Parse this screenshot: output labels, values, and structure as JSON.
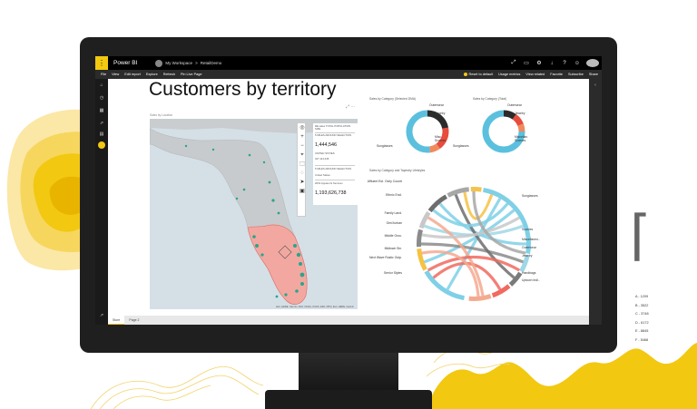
{
  "app": {
    "name": "Power BI",
    "breadcrumb_workspace": "My Workspace",
    "breadcrumb_sep": ">",
    "breadcrumb_report": "RetailDemo"
  },
  "topbar_icons": [
    "expand-icon",
    "notifications-icon",
    "settings-icon",
    "download-icon",
    "help-icon",
    "feedback-icon"
  ],
  "cmdbar": {
    "left": [
      "File",
      "View",
      "Edit report",
      "Explore",
      "Refresh",
      "Pin Live Page"
    ],
    "right": [
      "Reset to default",
      "Usage metrics",
      "View related",
      "Favorite",
      "Subscribe",
      "Share"
    ]
  },
  "report": {
    "title": "Customers by territory",
    "map_caption": "Sales by Location"
  },
  "stats": [
    {
      "label": "RE sales TOTAL POPULATION SIZE",
      "value": ""
    },
    {
      "label": "5 MILES AROUND SELECTION",
      "value": "1,444,546"
    },
    {
      "label": "UNITED STATES",
      "value": "327,114,236"
    },
    {
      "label": "5 MILES AROUND SELECTION",
      "value": "United States"
    },
    {
      "label": "2019 Apparel & Services",
      "value": "1,193,626,738"
    }
  ],
  "map_credit": "Esri, HERE, Garmin, FAO, NOAA, USGS, EPA, NPS | Esri, HERE, Garmin",
  "donut1": {
    "title": "Sales by Category (Selected DMA)",
    "labels": [
      "Outerwear",
      "Jewelry",
      "Sunglasses",
      "Misc. Scarves"
    ],
    "slices": [
      {
        "name": "Outerwear",
        "value": 22,
        "color": "#2b2b2b"
      },
      {
        "name": "Jewelry",
        "value": 18,
        "color": "#e74c3c"
      },
      {
        "name": "Misc",
        "value": 8,
        "color": "#f08a5d"
      },
      {
        "name": "Sunglasses",
        "value": 52,
        "color": "#5bc0de"
      }
    ]
  },
  "donut2": {
    "title": "Sales by Category (Total)",
    "labels": [
      "Outerwear",
      "Jewelry",
      "Sunglasses",
      "Miscellan. Scarves"
    ],
    "slices": [
      {
        "name": "Outerwear",
        "value": 10,
        "color": "#2b2b2b"
      },
      {
        "name": "Jewelry",
        "value": 9,
        "color": "#e74c3c"
      },
      {
        "name": "Misc",
        "value": 6,
        "color": "#f08a5d"
      },
      {
        "name": "Sunglasses",
        "value": 75,
        "color": "#5bc0de"
      }
    ]
  },
  "chord": {
    "title": "Sales by Category and Tapestry Lifestyles",
    "left_labels": [
      "Affluent Est. Ovrly Countr",
      "Ethnic Encl.",
      "Family Land.",
      "GenXurban",
      "Middle Grou.",
      "Midtown Sin.",
      "Next Wave Rustic Outp.",
      "Senior Styles"
    ],
    "right_labels": [
      "Sunglasses",
      "Scarves",
      "Miscellaneo..",
      "Outerwear",
      "Jewelry",
      "Handbags",
      "Uptown Indi.."
    ]
  },
  "tabs": [
    "Store",
    "Page 2"
  ],
  "side_legend": [
    "A - 1209",
    "B - 3522",
    "C - 3748",
    "D - 6172",
    "E - 8845",
    "F - 5468"
  ]
}
